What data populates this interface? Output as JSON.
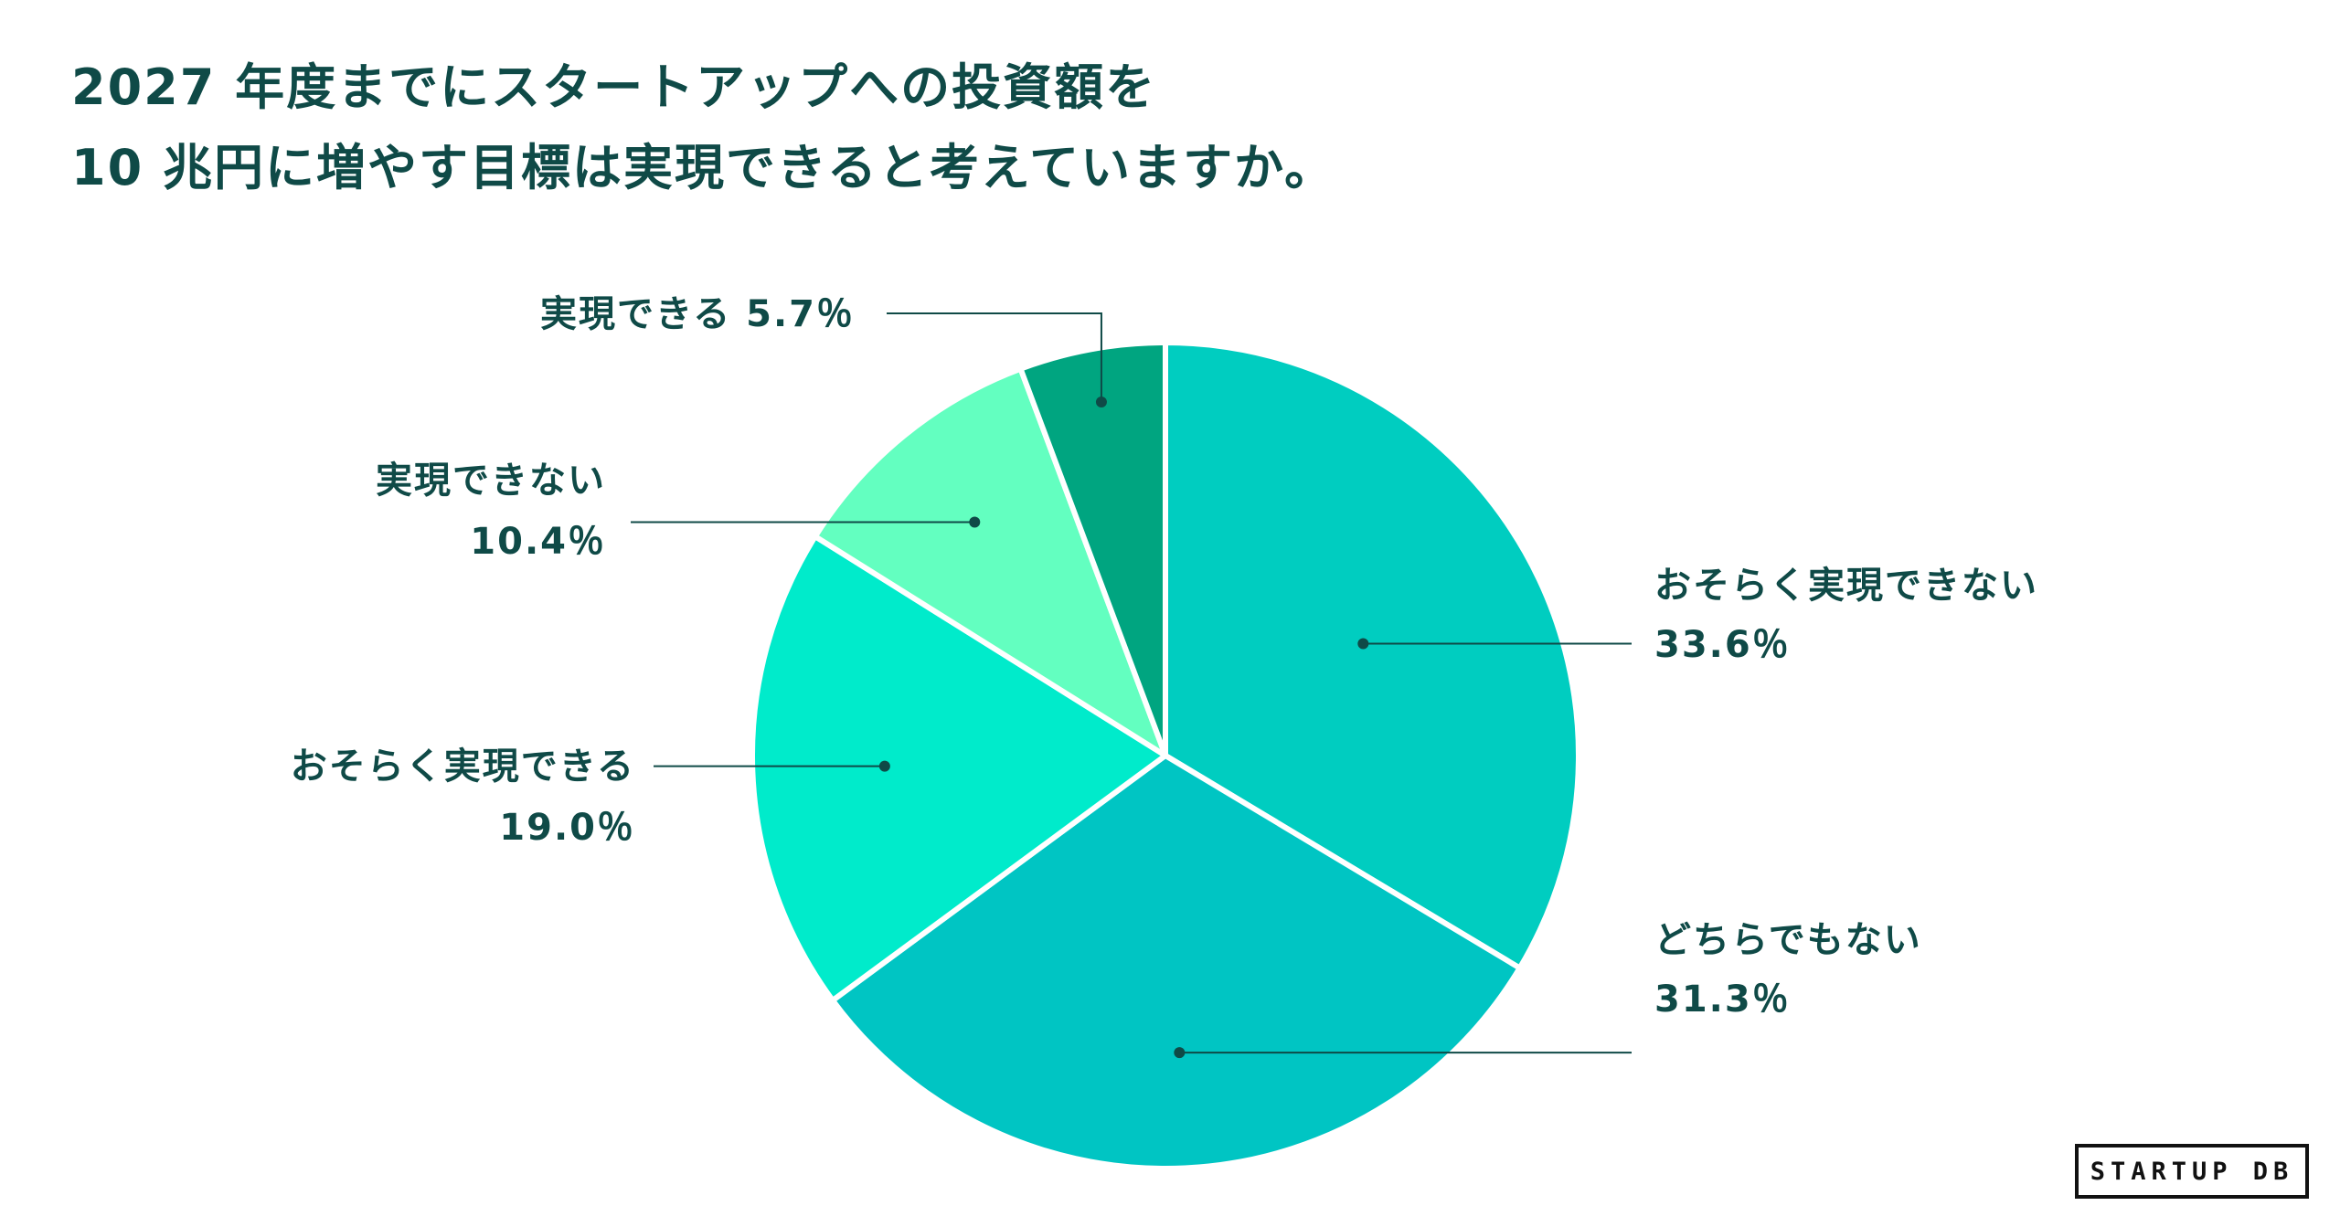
{
  "chart_title": {
    "line1": "2027 年度までにスタートアップへの投資額を",
    "line2": "10 兆円に増やす目標は実現できると考えていますか。"
  },
  "brand": "STARTUP DB",
  "chart_data": {
    "type": "pie",
    "title": "2027 年度までにスタートアップへの投資額を 10 兆円に増やす目標は実現できると考えていますか。",
    "start": "12 o'clock, clockwise",
    "slices": [
      {
        "label": "おそらく実現できない",
        "value": 33.6,
        "value_label": "33.6％",
        "color": "#00cdc0"
      },
      {
        "label": "どちらでもない",
        "value": 31.3,
        "value_label": "31.3％",
        "color": "#00c5c3"
      },
      {
        "label": "おそらく実現できる",
        "value": 19.0,
        "value_label": "19.0％",
        "color": "#00ebcb"
      },
      {
        "label": "実現できない",
        "value": 10.4,
        "value_label": "10.4％",
        "color": "#63ffc0"
      },
      {
        "label": "実現できる",
        "value": 5.7,
        "value_label": "5.7％",
        "color": "#00a580"
      }
    ],
    "label_color": "#0f4a47",
    "leader_color": "#0f4a47"
  }
}
